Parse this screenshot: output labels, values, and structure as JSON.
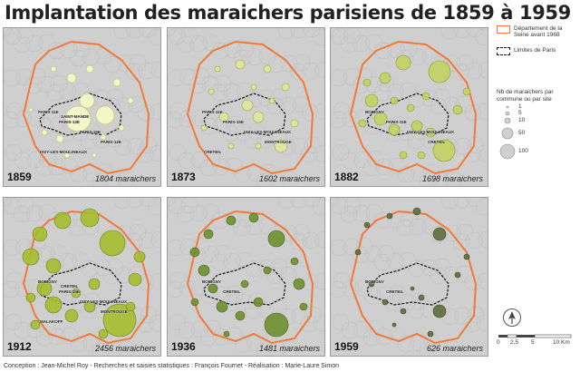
{
  "title": "Implantation des maraichers parisiens de 1859 à 1959",
  "legend": {
    "department_label": "Département de la Seine avant 1968",
    "department_color": "#f07a3a",
    "paris_label": "Limites de Paris",
    "size_title": "Nb de maraichers par commune ou par site",
    "size_values": [
      "1",
      "5",
      "10",
      "50",
      "100"
    ]
  },
  "scale": {
    "labels": [
      "0",
      "2,5",
      "5",
      "10 Km"
    ]
  },
  "credits": "Conception : Jean-Michel Roy - Recherches et saisies statistiques : François Fournet - Réalisation : Marie-Laure Simon",
  "panels": [
    {
      "year": "1859",
      "count": "1804 maraichers",
      "fill": "#f6f9c8",
      "stroke": "#b9c46a",
      "labels": [
        "PARIS-11E",
        "PARIS-13E",
        "PARIS-15E",
        "PARIS-12E",
        "ISSY-LES-MOULINEAUX",
        "SAINT-MANDE"
      ],
      "circles": [
        [
          82,
          100,
          14
        ],
        [
          92,
          80,
          8
        ],
        [
          112,
          96,
          10
        ],
        [
          75,
          55,
          5
        ],
        [
          55,
          45,
          3
        ],
        [
          95,
          45,
          4
        ],
        [
          125,
          60,
          4
        ],
        [
          45,
          115,
          3
        ],
        [
          62,
          122,
          4
        ],
        [
          110,
          120,
          3
        ],
        [
          130,
          110,
          3
        ],
        [
          140,
          80,
          3
        ],
        [
          30,
          90,
          2
        ],
        [
          70,
          140,
          3
        ],
        [
          100,
          140,
          2
        ]
      ]
    },
    {
      "year": "1873",
      "count": "1602 maraichers",
      "fill": "#dfe79a",
      "stroke": "#9aab3b",
      "labels": [
        "PARIS-11E",
        "PARIS-15E",
        "ISSY-LES-MOULINEAUX",
        "MONTROUGE",
        "CRETEIL"
      ],
      "circles": [
        [
          88,
          85,
          6
        ],
        [
          100,
          98,
          6
        ],
        [
          62,
          98,
          5
        ],
        [
          80,
          40,
          5
        ],
        [
          110,
          45,
          4
        ],
        [
          130,
          65,
          4
        ],
        [
          48,
          70,
          3
        ],
        [
          140,
          105,
          4
        ],
        [
          125,
          130,
          7
        ],
        [
          70,
          130,
          3
        ],
        [
          100,
          130,
          3
        ],
        [
          40,
          110,
          3
        ],
        [
          55,
          45,
          3
        ],
        [
          95,
          65,
          3
        ],
        [
          115,
          80,
          3
        ]
      ]
    },
    {
      "year": "1882",
      "count": "1698 maraichers",
      "fill": "#c3d060",
      "stroke": "#8a9c2e",
      "labels": [
        "BOBIGNY",
        "PARIS-11E",
        "ISSY-LES-MOULINEAUX",
        "CRETEIL"
      ],
      "circles": [
        [
          120,
          48,
          12
        ],
        [
          80,
          38,
          8
        ],
        [
          60,
          55,
          6
        ],
        [
          45,
          80,
          7
        ],
        [
          55,
          100,
          7
        ],
        [
          70,
          112,
          6
        ],
        [
          95,
          108,
          6
        ],
        [
          110,
          115,
          5
        ],
        [
          125,
          135,
          12
        ],
        [
          40,
          60,
          4
        ],
        [
          35,
          105,
          4
        ],
        [
          80,
          140,
          4
        ],
        [
          100,
          140,
          4
        ],
        [
          140,
          90,
          5
        ],
        [
          150,
          70,
          4
        ],
        [
          105,
          75,
          4
        ],
        [
          88,
          88,
          4
        ],
        [
          70,
          80,
          4
        ]
      ]
    },
    {
      "year": "1912",
      "count": "2456 maraichers",
      "fill": "#a5bc2c",
      "stroke": "#6f8420",
      "labels": [
        "BOBIGNY",
        "PARIS-15E",
        "ISSY-LES-MOULINEAUX",
        "MONTROUGE",
        "MALAKOFF",
        "CRETEIL"
      ],
      "circles": [
        [
          120,
          50,
          14
        ],
        [
          95,
          22,
          10
        ],
        [
          65,
          25,
          9
        ],
        [
          40,
          40,
          8
        ],
        [
          30,
          65,
          9
        ],
        [
          55,
          75,
          8
        ],
        [
          45,
          100,
          8
        ],
        [
          55,
          118,
          9
        ],
        [
          75,
          130,
          7
        ],
        [
          95,
          120,
          6
        ],
        [
          128,
          135,
          18
        ],
        [
          100,
          95,
          6
        ],
        [
          145,
          90,
          7
        ],
        [
          150,
          65,
          6
        ],
        [
          30,
          110,
          5
        ],
        [
          110,
          150,
          5
        ],
        [
          80,
          105,
          5
        ],
        [
          35,
          140,
          5
        ],
        [
          140,
          120,
          5
        ]
      ]
    },
    {
      "year": "1936",
      "count": "1481 maraichers",
      "fill": "#6d8f2c",
      "stroke": "#4a6418",
      "labels": [
        "BOBIGNY",
        "CRETEIL"
      ],
      "circles": [
        [
          120,
          45,
          9
        ],
        [
          95,
          22,
          5
        ],
        [
          70,
          25,
          5
        ],
        [
          45,
          40,
          5
        ],
        [
          30,
          60,
          5
        ],
        [
          40,
          80,
          6
        ],
        [
          50,
          100,
          5
        ],
        [
          60,
          120,
          6
        ],
        [
          80,
          130,
          5
        ],
        [
          100,
          115,
          5
        ],
        [
          120,
          140,
          13
        ],
        [
          145,
          95,
          6
        ],
        [
          140,
          70,
          4
        ],
        [
          85,
          95,
          4
        ],
        [
          110,
          80,
          4
        ],
        [
          30,
          115,
          4
        ],
        [
          150,
          120,
          4
        ],
        [
          65,
          150,
          3
        ]
      ]
    },
    {
      "year": "1959",
      "count": "626 maraichers",
      "fill": "#5c6e3c",
      "stroke": "#3d4b25",
      "labels": [
        "BOBIGNY",
        "CRETEIL"
      ],
      "circles": [
        [
          120,
          40,
          7
        ],
        [
          95,
          15,
          4
        ],
        [
          65,
          20,
          3
        ],
        [
          40,
          30,
          3
        ],
        [
          30,
          60,
          3
        ],
        [
          45,
          95,
          3
        ],
        [
          60,
          115,
          3
        ],
        [
          80,
          125,
          3
        ],
        [
          100,
          110,
          3
        ],
        [
          120,
          125,
          7
        ],
        [
          140,
          85,
          3
        ],
        [
          110,
          150,
          3
        ],
        [
          70,
          140,
          2
        ],
        [
          150,
          65,
          3
        ],
        [
          90,
          100,
          2
        ]
      ]
    }
  ]
}
